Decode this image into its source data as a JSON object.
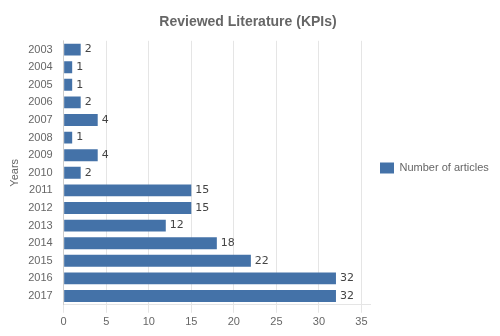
{
  "chart_data": {
    "type": "bar",
    "orientation": "horizontal",
    "title": "Reviewed Literature (KPIs)",
    "ylabel": "Years",
    "categories": [
      "2003",
      "2004",
      "2005",
      "2006",
      "2007",
      "2008",
      "2009",
      "2010",
      "2011",
      "2012",
      "2013",
      "2014",
      "2015",
      "2016",
      "2017"
    ],
    "series": [
      {
        "name": "Number of articles",
        "color": "#4472a8",
        "values": [
          2,
          1,
          1,
          2,
          4,
          1,
          4,
          2,
          15,
          15,
          12,
          18,
          22,
          32,
          32
        ]
      }
    ],
    "xlim": [
      0,
      36
    ],
    "xticks": [
      0,
      5,
      10,
      15,
      20,
      25,
      30,
      35
    ],
    "grid": true,
    "legend": "right",
    "data_labels": true
  }
}
